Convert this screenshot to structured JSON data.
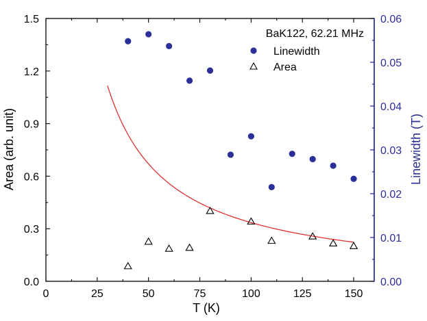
{
  "chart_data": {
    "type": "scatter",
    "xlabel": "T (K)",
    "ylabel_left": "Area (arb. unit)",
    "ylabel_right": "Linewidth (T)",
    "xlim": [
      0,
      160
    ],
    "ylim_left": [
      0,
      1.5
    ],
    "ylim_right": [
      0,
      0.06
    ],
    "x_ticks": [
      "0",
      "25",
      "50",
      "75",
      "100",
      "125",
      "150"
    ],
    "y_left_ticks": [
      "0.0",
      "0.3",
      "0.6",
      "0.9",
      "1.2",
      "1.5"
    ],
    "y_right_ticks": [
      "0.00",
      "0.01",
      "0.02",
      "0.03",
      "0.04",
      "0.05",
      "0.06"
    ],
    "legend": {
      "title": "BaK122, 62.21 MHz",
      "position": "top-right",
      "entries": [
        "Linewidth",
        "Area"
      ]
    },
    "series": [
      {
        "name": "Linewidth",
        "axis": "right",
        "marker": "filled-circle",
        "color": "#2b2f9a",
        "x": [
          40,
          50,
          60,
          70,
          80,
          90,
          100,
          110,
          120,
          130,
          140,
          150
        ],
        "y": [
          0.0548,
          0.0564,
          0.0537,
          0.0458,
          0.0481,
          0.0289,
          0.0331,
          0.0215,
          0.0291,
          0.0279,
          0.0264,
          0.0234
        ]
      },
      {
        "name": "Area",
        "axis": "left",
        "marker": "open-triangle",
        "color": "#000000",
        "x": [
          40,
          50,
          60,
          70,
          80,
          100,
          110,
          130,
          140,
          150
        ],
        "y": [
          0.085,
          0.225,
          0.185,
          0.19,
          0.4,
          0.34,
          0.23,
          0.255,
          0.215,
          0.2
        ]
      }
    ],
    "fit_curve": {
      "axis": "left",
      "color": "#e03030",
      "form": "y = 33.5 / x",
      "x_range": [
        30,
        150
      ]
    }
  }
}
